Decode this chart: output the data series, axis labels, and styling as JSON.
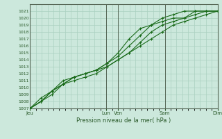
{
  "title": "",
  "xlabel": "Pression niveau de la mer( hPa )",
  "ylabel": "",
  "ylim": [
    1007,
    1022
  ],
  "yticks": [
    1007,
    1008,
    1009,
    1010,
    1011,
    1012,
    1013,
    1014,
    1015,
    1016,
    1017,
    1018,
    1019,
    1020,
    1021
  ],
  "bg_color": "#cce8dc",
  "grid_color": "#aad0c0",
  "line_color": "#1a6b1a",
  "marker_color": "#1a6b1a",
  "xtick_labels": [
    "Jeu",
    "Lun",
    "Ven",
    "Sam",
    "Dim"
  ],
  "xtick_positions": [
    0.0,
    3.25,
    3.75,
    5.75,
    8.0
  ],
  "vline_positions": [
    3.25,
    3.75,
    5.75,
    8.0
  ],
  "num_days": 8.0,
  "series": [
    [
      1007.0,
      1008.0,
      1009.5,
      1010.5,
      1011.5,
      1012.0,
      1012.5,
      1013.0,
      1014.0,
      1015.0,
      1016.0,
      1017.0,
      1018.0,
      1019.0,
      1019.5,
      1020.0,
      1020.5,
      1021.0
    ],
    [
      1007.0,
      1008.5,
      1009.5,
      1011.0,
      1011.5,
      1012.0,
      1012.5,
      1013.5,
      1015.0,
      1017.0,
      1018.5,
      1019.0,
      1019.5,
      1020.0,
      1020.0,
      1021.0,
      1021.0,
      1021.0
    ],
    [
      1007.0,
      1008.0,
      1009.5,
      1010.5,
      1011.5,
      1012.0,
      1012.5,
      1013.5,
      1014.5,
      1016.0,
      1017.5,
      1019.0,
      1020.0,
      1020.5,
      1021.0,
      1021.0,
      1021.0,
      1021.0
    ],
    [
      1007.0,
      1008.0,
      1009.0,
      1010.5,
      1011.0,
      1011.5,
      1012.0,
      1013.0,
      1014.0,
      1015.0,
      1016.5,
      1018.0,
      1019.0,
      1019.5,
      1020.0,
      1020.5,
      1021.0,
      1021.0
    ]
  ],
  "series_x": [
    0.0,
    0.47,
    0.94,
    1.41,
    1.88,
    2.35,
    2.82,
    3.29,
    3.76,
    4.23,
    4.7,
    5.17,
    5.64,
    6.11,
    6.58,
    7.05,
    7.52,
    8.0
  ]
}
